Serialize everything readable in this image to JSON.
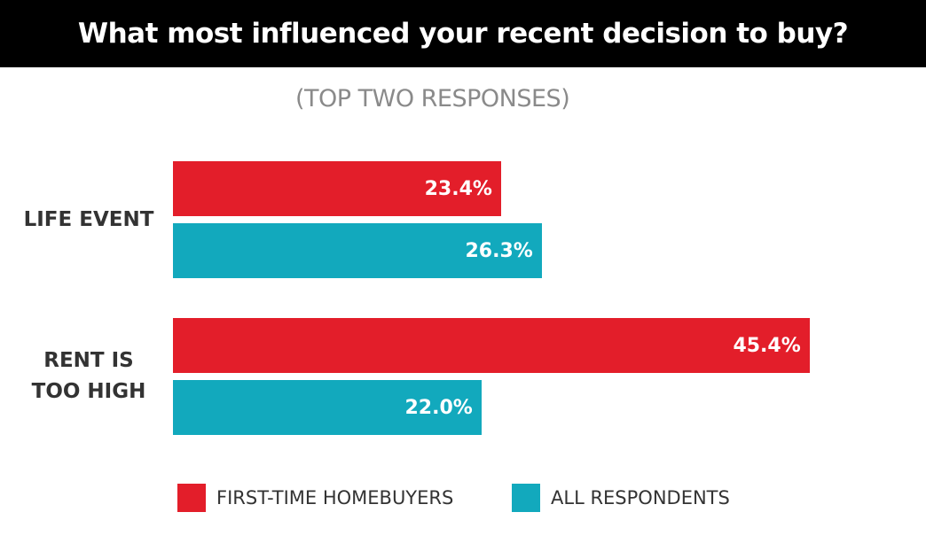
{
  "chart_data": {
    "type": "bar",
    "orientation": "horizontal",
    "title": "What most influenced your recent decision to buy?",
    "subtitle": "(TOP TWO RESPONSES)",
    "categories": [
      "LIFE EVENT",
      "RENT IS\nTOO HIGH"
    ],
    "series": [
      {
        "name": "FIRST-TIME HOMEBUYERS",
        "color": "#e31e2a",
        "values": [
          23.4,
          45.4
        ],
        "labels": [
          "23.4%",
          "45.4%"
        ]
      },
      {
        "name": "ALL RESPONDENTS",
        "color": "#12a9bd",
        "values": [
          26.3,
          22.0
        ],
        "labels": [
          "26.3%",
          "22.0%"
        ]
      }
    ],
    "value_unit": "%",
    "legend_position": "bottom",
    "grid": false
  }
}
